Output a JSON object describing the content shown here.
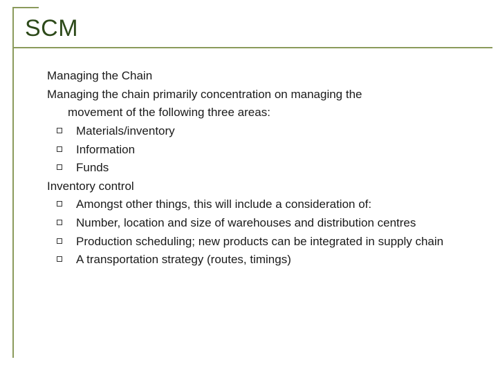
{
  "title": "SCM",
  "colors": {
    "accent": "#8a9a5b",
    "title_text": "#2d4a1a",
    "body_text": "#1a1a1a",
    "background": "#ffffff"
  },
  "typography": {
    "title_fontsize": 34,
    "body_fontsize": 17,
    "line_height": 1.45,
    "font_family": "Arial"
  },
  "section1_heading": "Managing the Chain",
  "section1_intro_line1": "Managing the chain primarily concentration on managing the",
  "section1_intro_line2": "movement of the following three areas:",
  "section1_bullets": [
    "Materials/inventory",
    "Information",
    "Funds"
  ],
  "section2_heading": "Inventory control",
  "section2_bullets": [
    "Amongst other things, this will include a consideration of:",
    "Number, location and size of warehouses and distribution centres",
    "Production scheduling; new products can be integrated in supply chain",
    "A transportation strategy (routes, timings)"
  ]
}
